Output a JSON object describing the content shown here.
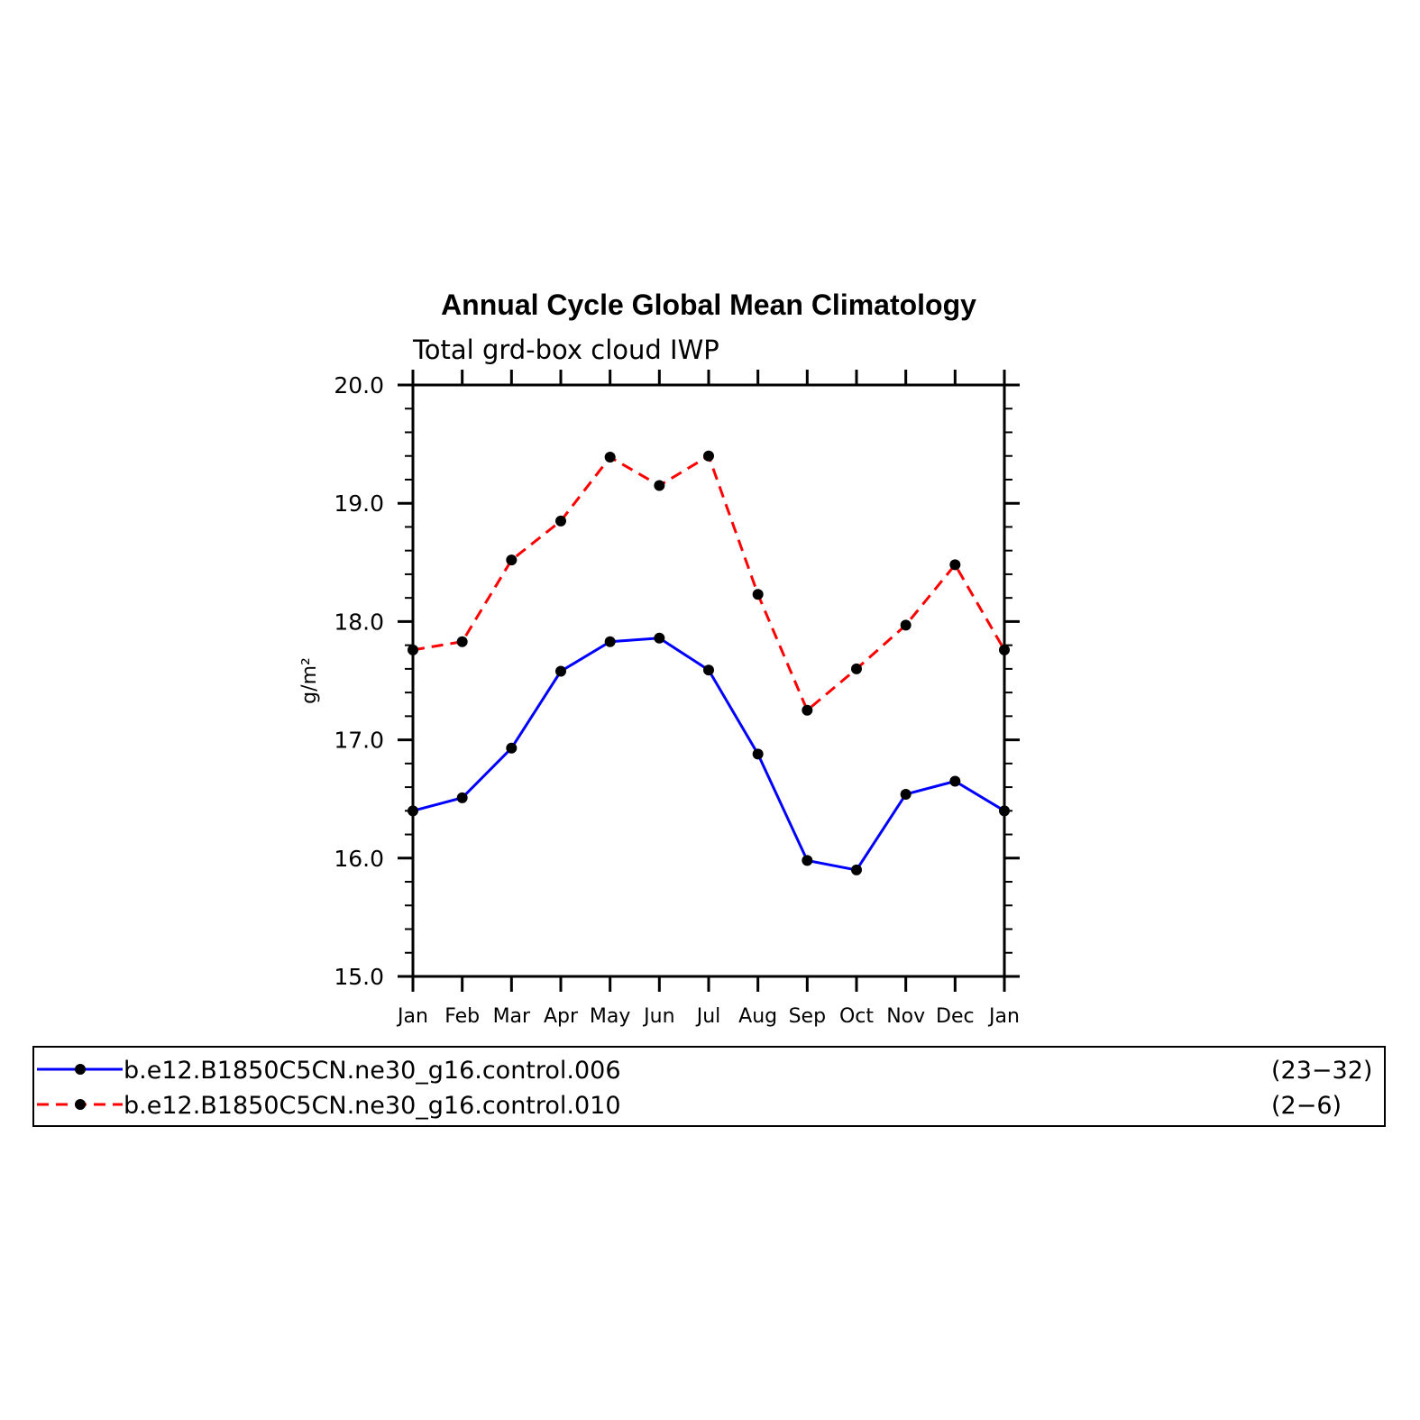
{
  "chart_data": {
    "type": "line",
    "title": "Annual Cycle Global Mean Climatology",
    "subtitle": "Total grd-box cloud IWP",
    "xlabel": "",
    "ylabel": "g/m²",
    "categories": [
      "Jan",
      "Feb",
      "Mar",
      "Apr",
      "May",
      "Jun",
      "Jul",
      "Aug",
      "Sep",
      "Oct",
      "Nov",
      "Dec",
      "Jan"
    ],
    "ylim": [
      15.0,
      20.0
    ],
    "yticks": [
      "15.0",
      "16.0",
      "17.0",
      "18.0",
      "19.0",
      "20.0"
    ],
    "grid": false,
    "legend_position": "bottom",
    "series": [
      {
        "name": "b.e12.B1850C5CN.ne30_g16.control.006",
        "years": "(23−32)",
        "color": "#0000ff",
        "style": "solid",
        "values": [
          16.4,
          16.51,
          16.93,
          17.58,
          17.83,
          17.86,
          17.59,
          16.88,
          15.98,
          15.9,
          16.54,
          16.65,
          16.4
        ]
      },
      {
        "name": "b.e12.B1850C5CN.ne30_g16.control.010",
        "years": "(2−6)",
        "color": "#ff0000",
        "style": "dashed",
        "values": [
          17.76,
          17.83,
          18.52,
          18.85,
          19.39,
          19.15,
          19.4,
          18.23,
          17.25,
          17.6,
          17.97,
          18.48,
          17.76
        ]
      }
    ]
  }
}
